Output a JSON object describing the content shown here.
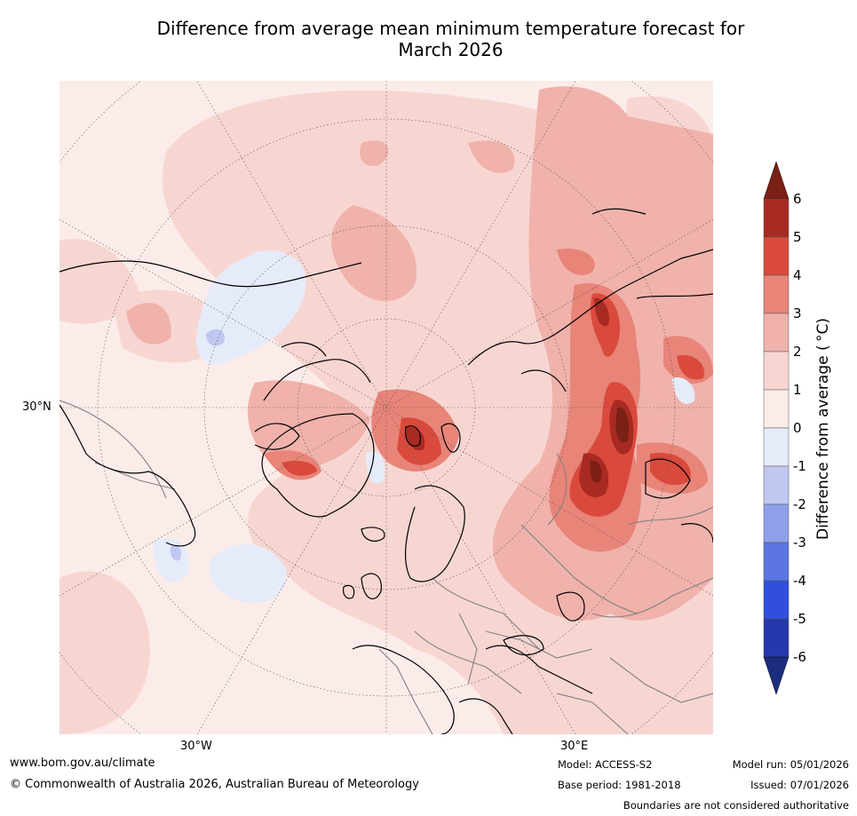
{
  "title_line1": "Difference from average mean minimum temperature forecast for",
  "title_line2": "March 2026",
  "map": {
    "projection": "north polar stereographic",
    "lat_label": "30°N",
    "lon_labels": [
      "30°W",
      "30°E"
    ],
    "boundary_color": "#000000",
    "border_color": "#808080"
  },
  "colorbar": {
    "label": "Difference from average ( °C)",
    "ticks": [
      "6",
      "5",
      "4",
      "3",
      "2",
      "1",
      "0",
      "-1",
      "-2",
      "-3",
      "-4",
      "-5",
      "-6"
    ],
    "colors_top_to_bottom": [
      "#7b2015",
      "#a82a22",
      "#d94a3d",
      "#e88478",
      "#f0b2ab",
      "#f7d6d2",
      "#fbece9",
      "#e6ebfa",
      "#c0c8f1",
      "#8e9feb",
      "#5b76e2",
      "#2f4fdc",
      "#2538ae",
      "#1c2d80"
    ]
  },
  "footer": {
    "url": "www.bom.gov.au/climate",
    "copyright": "© Commonwealth of Australia 2026, Australian Bureau of Meteorology",
    "model": "Model: ACCESS-S2",
    "base_period": "Base period: 1981-2018",
    "model_run": "Model run: 05/01/2026",
    "issued": "Issued: 07/01/2026",
    "disclaimer": "Boundaries are not considered authoritative"
  }
}
